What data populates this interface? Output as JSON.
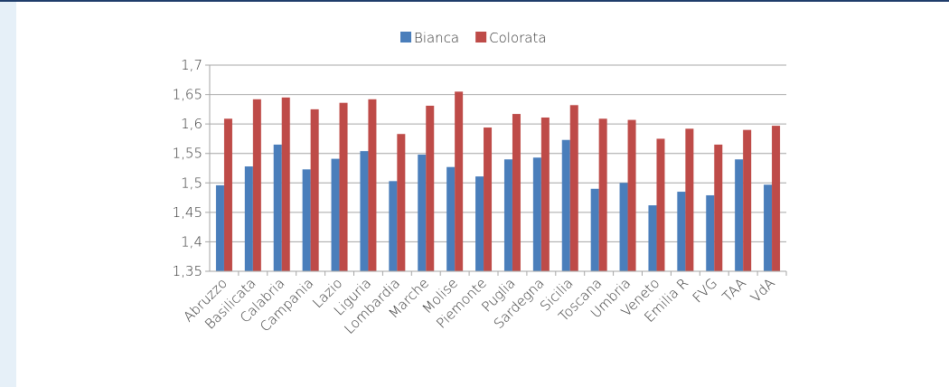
{
  "chart_data": {
    "type": "bar",
    "categories": [
      "Abruzzo",
      "Basilicata",
      "Calabria",
      "Campania",
      "Lazio",
      "Liguria",
      "Lombardia",
      "Marche",
      "Molise",
      "Piemonte",
      "Puglia",
      "Sardegna",
      "Sicilia",
      "Toscana",
      "Umbria",
      "Veneto",
      "Emilia R",
      "FVG",
      "TAA",
      "VdA"
    ],
    "series": [
      {
        "name": "Bianca",
        "color": "#4a7ebb",
        "values": [
          1.496,
          1.528,
          1.565,
          1.523,
          1.541,
          1.554,
          1.503,
          1.548,
          1.527,
          1.511,
          1.54,
          1.543,
          1.573,
          1.49,
          1.5,
          1.462,
          1.485,
          1.479,
          1.54,
          1.497
        ]
      },
      {
        "name": "Colorata",
        "color": "#be4b48",
        "values": [
          1.609,
          1.642,
          1.645,
          1.625,
          1.636,
          1.642,
          1.583,
          1.631,
          1.655,
          1.594,
          1.617,
          1.611,
          1.632,
          1.609,
          1.607,
          1.575,
          1.592,
          1.565,
          1.59,
          1.597
        ]
      }
    ],
    "ylim": [
      1.35,
      1.7
    ],
    "yticks": [
      {
        "value": 1.35,
        "label": "1,35"
      },
      {
        "value": 1.4,
        "label": "1,4"
      },
      {
        "value": 1.45,
        "label": "1,45"
      },
      {
        "value": 1.5,
        "label": "1,5"
      },
      {
        "value": 1.55,
        "label": "1,55"
      },
      {
        "value": 1.6,
        "label": "1,6"
      },
      {
        "value": 1.65,
        "label": "1,65"
      },
      {
        "value": 1.7,
        "label": "1,7"
      }
    ],
    "grid": true,
    "legend": "top"
  }
}
